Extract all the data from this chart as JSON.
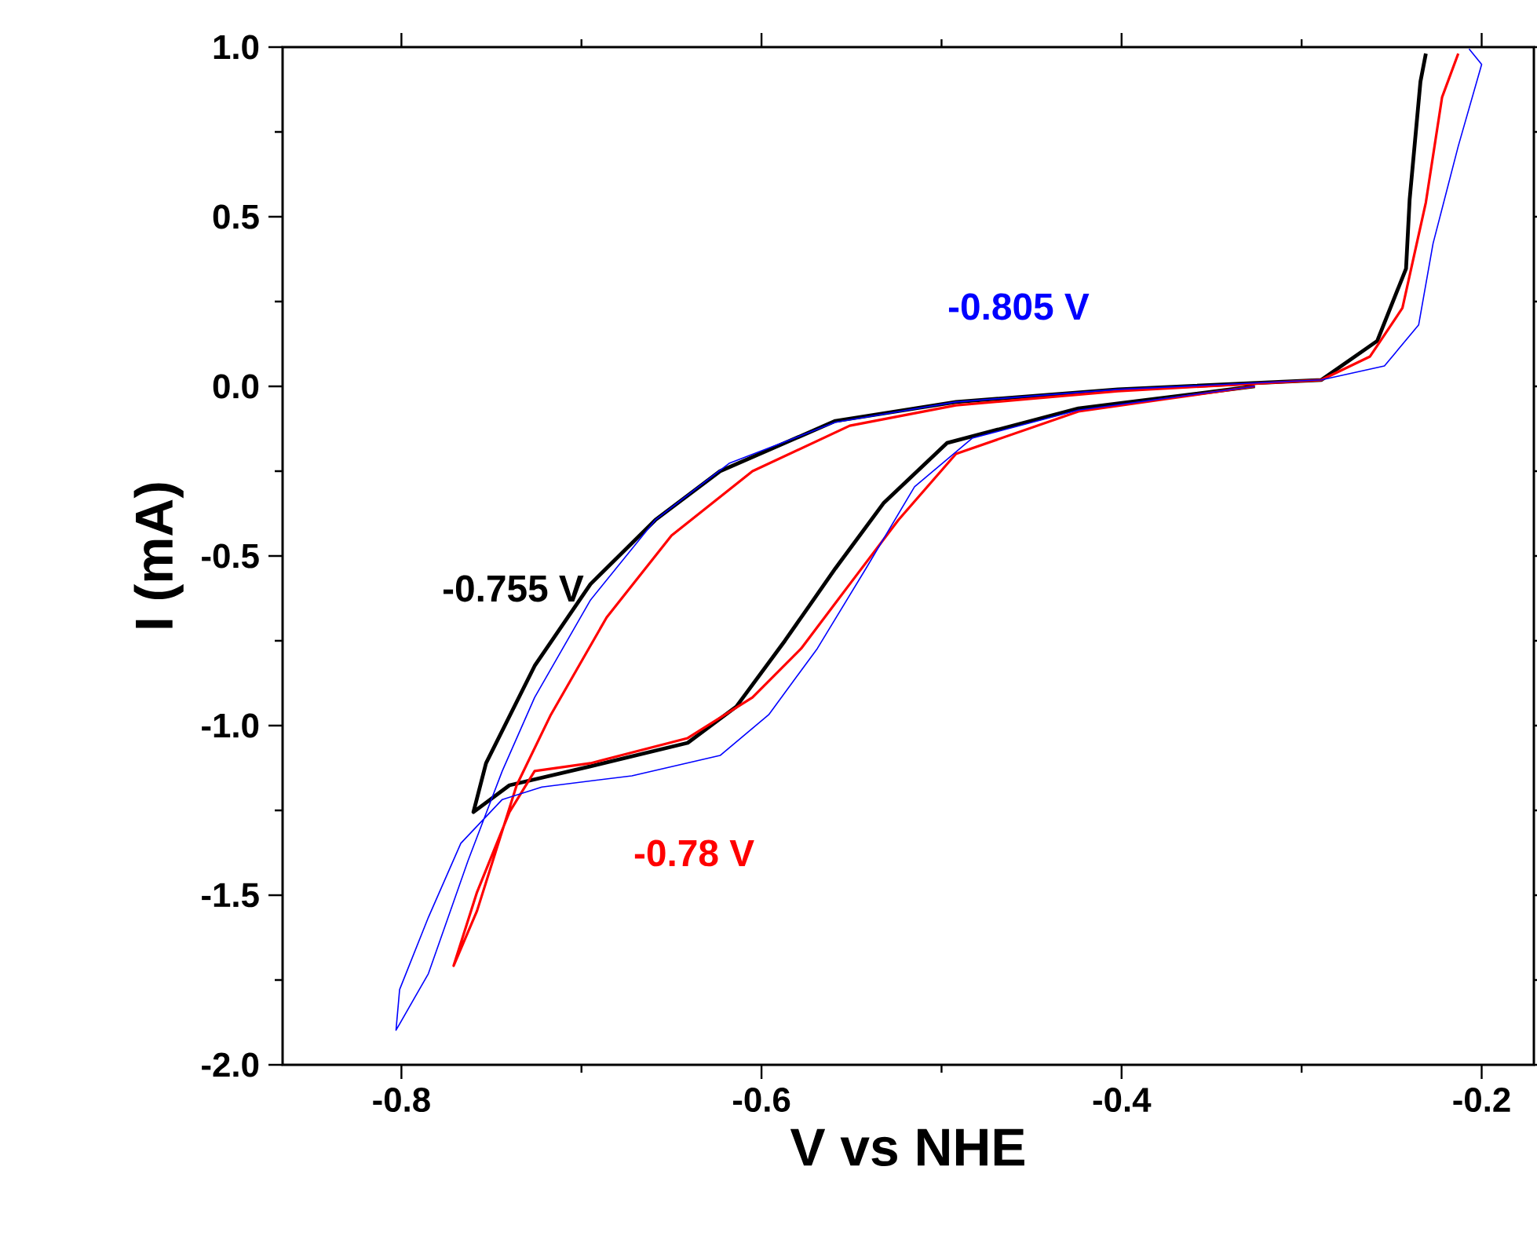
{
  "chart_data": {
    "type": "line",
    "xlabel": "V vs NHE",
    "ylabel": "I (mA)",
    "xlim": [
      -0.866,
      -0.171
    ],
    "ylim": [
      -2.0,
      1.0
    ],
    "xticks": [
      -0.8,
      -0.6,
      -0.4,
      -0.2
    ],
    "yticks": [
      {
        "value": -2.0,
        "label": "-2.0"
      },
      {
        "value": -1.5,
        "label": "-1.5"
      },
      {
        "value": -1.0,
        "label": "-1.0"
      },
      {
        "value": -0.5,
        "label": "-0.5"
      },
      {
        "value": 0.0,
        "label": "0.0"
      },
      {
        "value": 0.5,
        "label": "0.5"
      },
      {
        "value": 1.0,
        "label": "1.0"
      }
    ],
    "marker": "none",
    "line_style": "solid",
    "series": [
      {
        "name": "-0.755 V",
        "color": "#000000",
        "x": [
          -0.326,
          -0.424,
          -0.497,
          -0.532,
          -0.559,
          -0.587,
          -0.614,
          -0.641,
          -0.695,
          -0.74,
          -0.76,
          -0.753,
          -0.726,
          -0.695,
          -0.659,
          -0.623,
          -0.559,
          -0.492,
          -0.402,
          -0.289,
          -0.258,
          -0.242,
          -0.24,
          -0.234,
          -0.231
        ],
        "values": [
          0,
          -0.065,
          -0.167,
          -0.343,
          -0.537,
          -0.75,
          -0.944,
          -1.051,
          -1.12,
          -1.176,
          -1.255,
          -1.111,
          -0.824,
          -0.583,
          -0.394,
          -0.25,
          -0.102,
          -0.046,
          -0.009,
          0.019,
          0.134,
          0.347,
          0.551,
          0.898,
          0.981
        ]
      },
      {
        "name": "-0.78 V",
        "color": "#ff0000",
        "x": [
          -0.326,
          -0.424,
          -0.492,
          -0.524,
          -0.551,
          -0.578,
          -0.605,
          -0.641,
          -0.695,
          -0.726,
          -0.74,
          -0.758,
          -0.771,
          -0.758,
          -0.736,
          -0.717,
          -0.686,
          -0.65,
          -0.605,
          -0.551,
          -0.492,
          -0.402,
          -0.289,
          -0.262,
          -0.244,
          -0.231,
          -0.222,
          -0.213
        ],
        "values": [
          0,
          -0.074,
          -0.199,
          -0.394,
          -0.583,
          -0.773,
          -0.917,
          -1.037,
          -1.111,
          -1.134,
          -1.255,
          -1.491,
          -1.708,
          -1.546,
          -1.176,
          -0.968,
          -0.681,
          -0.44,
          -0.25,
          -0.116,
          -0.056,
          -0.014,
          0.019,
          0.088,
          0.231,
          0.542,
          0.852,
          0.981
        ]
      },
      {
        "name": "-0.805 V",
        "color": "#0000ff",
        "x": [
          -0.326,
          -0.424,
          -0.483,
          -0.515,
          -0.542,
          -0.569,
          -0.596,
          -0.623,
          -0.672,
          -0.722,
          -0.744,
          -0.767,
          -0.785,
          -0.801,
          -0.803,
          -0.785,
          -0.763,
          -0.744,
          -0.726,
          -0.695,
          -0.659,
          -0.618,
          -0.559,
          -0.492,
          -0.402,
          -0.289,
          -0.254,
          -0.235,
          -0.227,
          -0.213,
          -0.2,
          -0.207
        ],
        "values": [
          0,
          -0.07,
          -0.153,
          -0.296,
          -0.537,
          -0.773,
          -0.968,
          -1.088,
          -1.148,
          -1.181,
          -1.218,
          -1.347,
          -1.565,
          -1.778,
          -1.898,
          -1.731,
          -1.398,
          -1.134,
          -0.917,
          -0.63,
          -0.394,
          -0.227,
          -0.106,
          -0.046,
          -0.009,
          0.019,
          0.06,
          0.181,
          0.421,
          0.708,
          0.949,
          0.995
        ]
      }
    ]
  }
}
